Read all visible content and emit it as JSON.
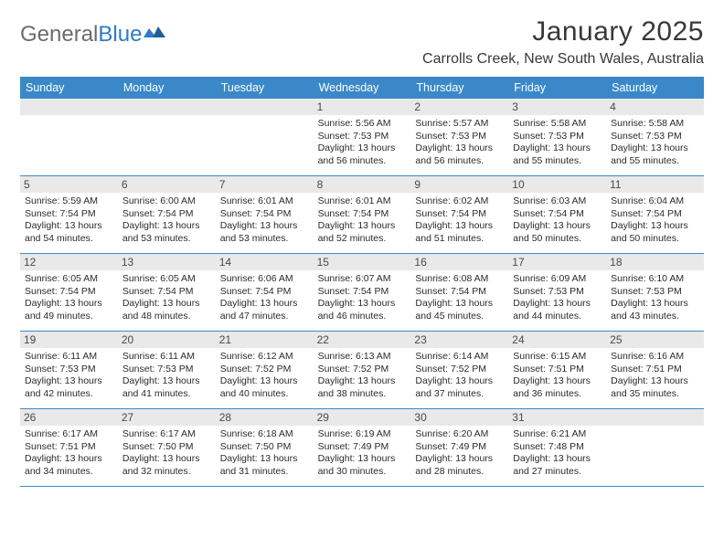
{
  "logo": {
    "text1": "General",
    "text2": "Blue"
  },
  "title": "January 2025",
  "location": "Carrolls Creek, New South Wales, Australia",
  "colors": {
    "header_bg": "#3b88c9",
    "header_fg": "#ffffff",
    "daynum_bg": "#e9e9e9",
    "logo_gray": "#6b6b6b",
    "logo_blue": "#2f7bc4",
    "rule": "#3b88c9"
  },
  "day_names": [
    "Sunday",
    "Monday",
    "Tuesday",
    "Wednesday",
    "Thursday",
    "Friday",
    "Saturday"
  ],
  "weeks": [
    [
      {
        "n": "",
        "l1": "",
        "l2": "",
        "l3": ""
      },
      {
        "n": "",
        "l1": "",
        "l2": "",
        "l3": ""
      },
      {
        "n": "",
        "l1": "",
        "l2": "",
        "l3": ""
      },
      {
        "n": "1",
        "l1": "Sunrise: 5:56 AM",
        "l2": "Sunset: 7:53 PM",
        "l3": "Daylight: 13 hours and 56 minutes."
      },
      {
        "n": "2",
        "l1": "Sunrise: 5:57 AM",
        "l2": "Sunset: 7:53 PM",
        "l3": "Daylight: 13 hours and 56 minutes."
      },
      {
        "n": "3",
        "l1": "Sunrise: 5:58 AM",
        "l2": "Sunset: 7:53 PM",
        "l3": "Daylight: 13 hours and 55 minutes."
      },
      {
        "n": "4",
        "l1": "Sunrise: 5:58 AM",
        "l2": "Sunset: 7:53 PM",
        "l3": "Daylight: 13 hours and 55 minutes."
      }
    ],
    [
      {
        "n": "5",
        "l1": "Sunrise: 5:59 AM",
        "l2": "Sunset: 7:54 PM",
        "l3": "Daylight: 13 hours and 54 minutes."
      },
      {
        "n": "6",
        "l1": "Sunrise: 6:00 AM",
        "l2": "Sunset: 7:54 PM",
        "l3": "Daylight: 13 hours and 53 minutes."
      },
      {
        "n": "7",
        "l1": "Sunrise: 6:01 AM",
        "l2": "Sunset: 7:54 PM",
        "l3": "Daylight: 13 hours and 53 minutes."
      },
      {
        "n": "8",
        "l1": "Sunrise: 6:01 AM",
        "l2": "Sunset: 7:54 PM",
        "l3": "Daylight: 13 hours and 52 minutes."
      },
      {
        "n": "9",
        "l1": "Sunrise: 6:02 AM",
        "l2": "Sunset: 7:54 PM",
        "l3": "Daylight: 13 hours and 51 minutes."
      },
      {
        "n": "10",
        "l1": "Sunrise: 6:03 AM",
        "l2": "Sunset: 7:54 PM",
        "l3": "Daylight: 13 hours and 50 minutes."
      },
      {
        "n": "11",
        "l1": "Sunrise: 6:04 AM",
        "l2": "Sunset: 7:54 PM",
        "l3": "Daylight: 13 hours and 50 minutes."
      }
    ],
    [
      {
        "n": "12",
        "l1": "Sunrise: 6:05 AM",
        "l2": "Sunset: 7:54 PM",
        "l3": "Daylight: 13 hours and 49 minutes."
      },
      {
        "n": "13",
        "l1": "Sunrise: 6:05 AM",
        "l2": "Sunset: 7:54 PM",
        "l3": "Daylight: 13 hours and 48 minutes."
      },
      {
        "n": "14",
        "l1": "Sunrise: 6:06 AM",
        "l2": "Sunset: 7:54 PM",
        "l3": "Daylight: 13 hours and 47 minutes."
      },
      {
        "n": "15",
        "l1": "Sunrise: 6:07 AM",
        "l2": "Sunset: 7:54 PM",
        "l3": "Daylight: 13 hours and 46 minutes."
      },
      {
        "n": "16",
        "l1": "Sunrise: 6:08 AM",
        "l2": "Sunset: 7:54 PM",
        "l3": "Daylight: 13 hours and 45 minutes."
      },
      {
        "n": "17",
        "l1": "Sunrise: 6:09 AM",
        "l2": "Sunset: 7:53 PM",
        "l3": "Daylight: 13 hours and 44 minutes."
      },
      {
        "n": "18",
        "l1": "Sunrise: 6:10 AM",
        "l2": "Sunset: 7:53 PM",
        "l3": "Daylight: 13 hours and 43 minutes."
      }
    ],
    [
      {
        "n": "19",
        "l1": "Sunrise: 6:11 AM",
        "l2": "Sunset: 7:53 PM",
        "l3": "Daylight: 13 hours and 42 minutes."
      },
      {
        "n": "20",
        "l1": "Sunrise: 6:11 AM",
        "l2": "Sunset: 7:53 PM",
        "l3": "Daylight: 13 hours and 41 minutes."
      },
      {
        "n": "21",
        "l1": "Sunrise: 6:12 AM",
        "l2": "Sunset: 7:52 PM",
        "l3": "Daylight: 13 hours and 40 minutes."
      },
      {
        "n": "22",
        "l1": "Sunrise: 6:13 AM",
        "l2": "Sunset: 7:52 PM",
        "l3": "Daylight: 13 hours and 38 minutes."
      },
      {
        "n": "23",
        "l1": "Sunrise: 6:14 AM",
        "l2": "Sunset: 7:52 PM",
        "l3": "Daylight: 13 hours and 37 minutes."
      },
      {
        "n": "24",
        "l1": "Sunrise: 6:15 AM",
        "l2": "Sunset: 7:51 PM",
        "l3": "Daylight: 13 hours and 36 minutes."
      },
      {
        "n": "25",
        "l1": "Sunrise: 6:16 AM",
        "l2": "Sunset: 7:51 PM",
        "l3": "Daylight: 13 hours and 35 minutes."
      }
    ],
    [
      {
        "n": "26",
        "l1": "Sunrise: 6:17 AM",
        "l2": "Sunset: 7:51 PM",
        "l3": "Daylight: 13 hours and 34 minutes."
      },
      {
        "n": "27",
        "l1": "Sunrise: 6:17 AM",
        "l2": "Sunset: 7:50 PM",
        "l3": "Daylight: 13 hours and 32 minutes."
      },
      {
        "n": "28",
        "l1": "Sunrise: 6:18 AM",
        "l2": "Sunset: 7:50 PM",
        "l3": "Daylight: 13 hours and 31 minutes."
      },
      {
        "n": "29",
        "l1": "Sunrise: 6:19 AM",
        "l2": "Sunset: 7:49 PM",
        "l3": "Daylight: 13 hours and 30 minutes."
      },
      {
        "n": "30",
        "l1": "Sunrise: 6:20 AM",
        "l2": "Sunset: 7:49 PM",
        "l3": "Daylight: 13 hours and 28 minutes."
      },
      {
        "n": "31",
        "l1": "Sunrise: 6:21 AM",
        "l2": "Sunset: 7:48 PM",
        "l3": "Daylight: 13 hours and 27 minutes."
      },
      {
        "n": "",
        "l1": "",
        "l2": "",
        "l3": ""
      }
    ]
  ]
}
